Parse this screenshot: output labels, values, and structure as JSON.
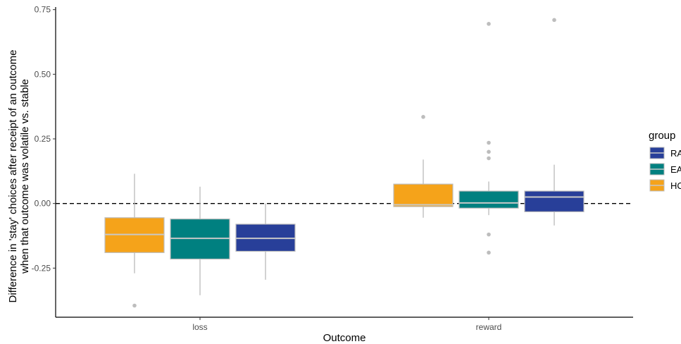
{
  "chart_data": {
    "type": "boxplot",
    "xlabel": "Outcome",
    "ylabel_lines": [
      "Difference in 'stay' choices after receipt of an outcome",
      "when that outcome was volatile vs. stable"
    ],
    "ylim": [
      -0.44,
      0.76
    ],
    "yticks": [
      -0.25,
      0.0,
      0.25,
      0.5,
      0.75
    ],
    "ytick_labels": [
      "-0.25",
      "0.00",
      "0.25",
      "0.50",
      "0.75"
    ],
    "reference_line": 0.0,
    "categories": [
      "loss",
      "reward"
    ],
    "legend": {
      "title": "group",
      "entries": [
        {
          "label": "RA",
          "color": "#283F99"
        },
        {
          "label": "EA",
          "color": "#008080"
        },
        {
          "label": "HC",
          "color": "#F5A31A"
        }
      ]
    },
    "boxes": [
      {
        "category": "loss",
        "group": "HC",
        "color": "#F5A31A",
        "whisker_low": -0.27,
        "q1": -0.19,
        "median": -0.12,
        "q3": -0.055,
        "whisker_high": 0.115,
        "outliers": [
          -0.395
        ]
      },
      {
        "category": "loss",
        "group": "EA",
        "color": "#008080",
        "whisker_low": -0.355,
        "q1": -0.215,
        "median": -0.135,
        "q3": -0.06,
        "whisker_high": 0.065,
        "outliers": []
      },
      {
        "category": "loss",
        "group": "RA",
        "color": "#283F99",
        "whisker_low": -0.295,
        "q1": -0.185,
        "median": -0.135,
        "q3": -0.08,
        "whisker_high": 0.0,
        "outliers": []
      },
      {
        "category": "reward",
        "group": "HC",
        "color": "#F5A31A",
        "whisker_low": -0.055,
        "q1": -0.012,
        "median": -0.005,
        "q3": 0.075,
        "whisker_high": 0.17,
        "outliers": [
          0.335
        ]
      },
      {
        "category": "reward",
        "group": "EA",
        "color": "#008080",
        "whisker_low": -0.045,
        "q1": -0.018,
        "median": 0.002,
        "q3": 0.048,
        "whisker_high": 0.085,
        "outliers": [
          0.695,
          0.235,
          0.2,
          0.175,
          -0.12,
          -0.19
        ]
      },
      {
        "category": "reward",
        "group": "RA",
        "color": "#283F99",
        "whisker_low": -0.085,
        "q1": -0.032,
        "median": 0.025,
        "q3": 0.048,
        "whisker_high": 0.15,
        "outliers": [
          0.71
        ]
      }
    ]
  }
}
